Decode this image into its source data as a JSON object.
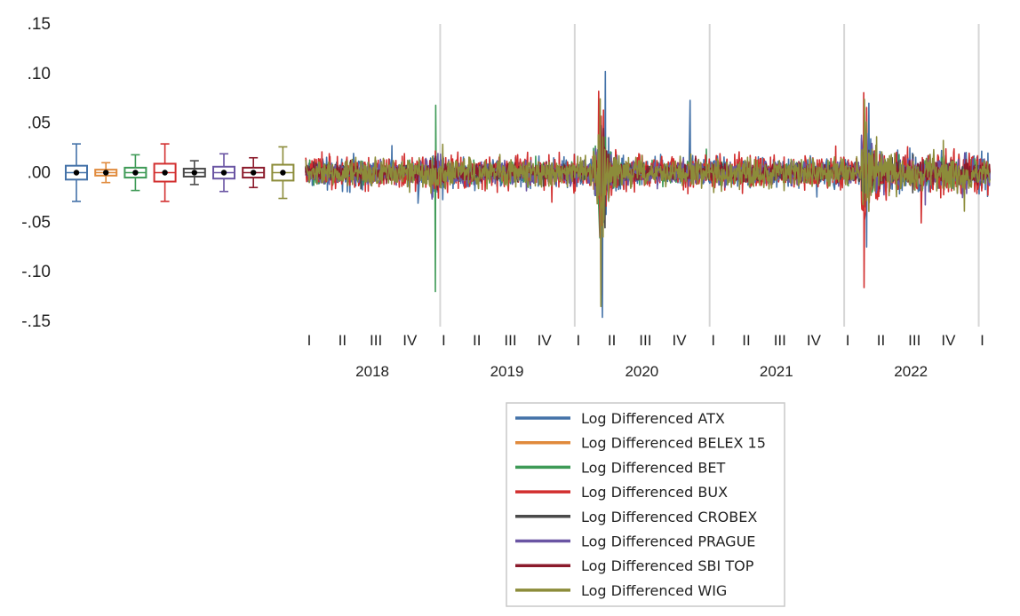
{
  "chart_data": {
    "type": "line",
    "title": "",
    "xlabel": "",
    "ylabel": "",
    "ylim": [
      -0.15,
      0.15
    ],
    "y_ticks": [
      {
        "value": 0.15,
        "label": ".15"
      },
      {
        "value": 0.1,
        "label": ".10"
      },
      {
        "value": 0.05,
        "label": ".05"
      },
      {
        "value": 0.0,
        "label": ".00"
      },
      {
        "value": -0.05,
        "label": "-.05"
      },
      {
        "value": -0.1,
        "label": "-.10"
      },
      {
        "value": -0.15,
        "label": "-.15"
      }
    ],
    "x_range": [
      "2018-01-01",
      "2023-01-31"
    ],
    "quarter_labels": [
      "I",
      "II",
      "III",
      "IV",
      "I",
      "II",
      "III",
      "IV",
      "I",
      "II",
      "III",
      "IV",
      "I",
      "II",
      "III",
      "IV",
      "I",
      "II",
      "III",
      "IV",
      "I"
    ],
    "year_labels": [
      "2018",
      "2019",
      "2020",
      "2021",
      "2022"
    ],
    "year_separators": [
      "2019-01-01",
      "2020-01-01",
      "2021-01-01",
      "2022-01-01",
      "2023-01-01"
    ],
    "grid": true,
    "legend_position": "bottom-center",
    "series": [
      {
        "name": "Log Differenced ATX",
        "color": "#4472A8",
        "boxplot": {
          "median": 0.0,
          "q1": -0.007,
          "q3": 0.007,
          "whisker_low": -0.029,
          "whisker_high": 0.029
        },
        "extremes": [
          {
            "date": "2020-03-16",
            "value": -0.146
          },
          {
            "date": "2020-03-24",
            "value": 0.102
          },
          {
            "date": "2020-11-09",
            "value": 0.073
          },
          {
            "date": "2022-03-03",
            "value": -0.075
          },
          {
            "date": "2022-03-09",
            "value": 0.07
          }
        ]
      },
      {
        "name": "Log Differenced BELEX 15",
        "color": "#E08A3C",
        "boxplot": {
          "median": 0.0,
          "q1": -0.003,
          "q3": 0.003,
          "whisker_low": -0.01,
          "whisker_high": 0.01
        },
        "extremes": []
      },
      {
        "name": "Log Differenced BET",
        "color": "#3E9A56",
        "boxplot": {
          "median": 0.0,
          "q1": -0.005,
          "q3": 0.005,
          "whisker_low": -0.018,
          "whisker_high": 0.018
        },
        "extremes": [
          {
            "date": "2018-12-19",
            "value": -0.12
          },
          {
            "date": "2018-12-20",
            "value": 0.068
          }
        ]
      },
      {
        "name": "Log Differenced BUX",
        "color": "#D22F2F",
        "boxplot": {
          "median": 0.0,
          "q1": -0.009,
          "q3": 0.009,
          "whisker_low": -0.029,
          "whisker_high": 0.029
        },
        "extremes": [
          {
            "date": "2020-03-12",
            "value": -0.123
          },
          {
            "date": "2020-03-13",
            "value": 0.057
          },
          {
            "date": "2022-02-24",
            "value": -0.116
          }
        ]
      },
      {
        "name": "Log Differenced CROBEX",
        "color": "#4A4A4A",
        "boxplot": {
          "median": 0.0,
          "q1": -0.004,
          "q3": 0.004,
          "whisker_low": -0.012,
          "whisker_high": 0.012
        },
        "extremes": []
      },
      {
        "name": "Log Differenced PRAGUE",
        "color": "#6A55A3",
        "boxplot": {
          "median": 0.0,
          "q1": -0.006,
          "q3": 0.006,
          "whisker_low": -0.019,
          "whisker_high": 0.019
        },
        "extremes": []
      },
      {
        "name": "Log Differenced SBI TOP",
        "color": "#8B1A2B",
        "boxplot": {
          "median": 0.0,
          "q1": -0.005,
          "q3": 0.005,
          "whisker_low": -0.015,
          "whisker_high": 0.015
        },
        "extremes": []
      },
      {
        "name": "Log Differenced WIG",
        "color": "#8C8C3A",
        "boxplot": {
          "median": 0.0,
          "q1": -0.008,
          "q3": 0.008,
          "whisker_low": -0.026,
          "whisker_high": 0.026
        },
        "extremes": [
          {
            "date": "2020-03-12",
            "value": -0.135
          },
          {
            "date": "2022-02-25",
            "value": 0.074
          }
        ]
      }
    ]
  }
}
